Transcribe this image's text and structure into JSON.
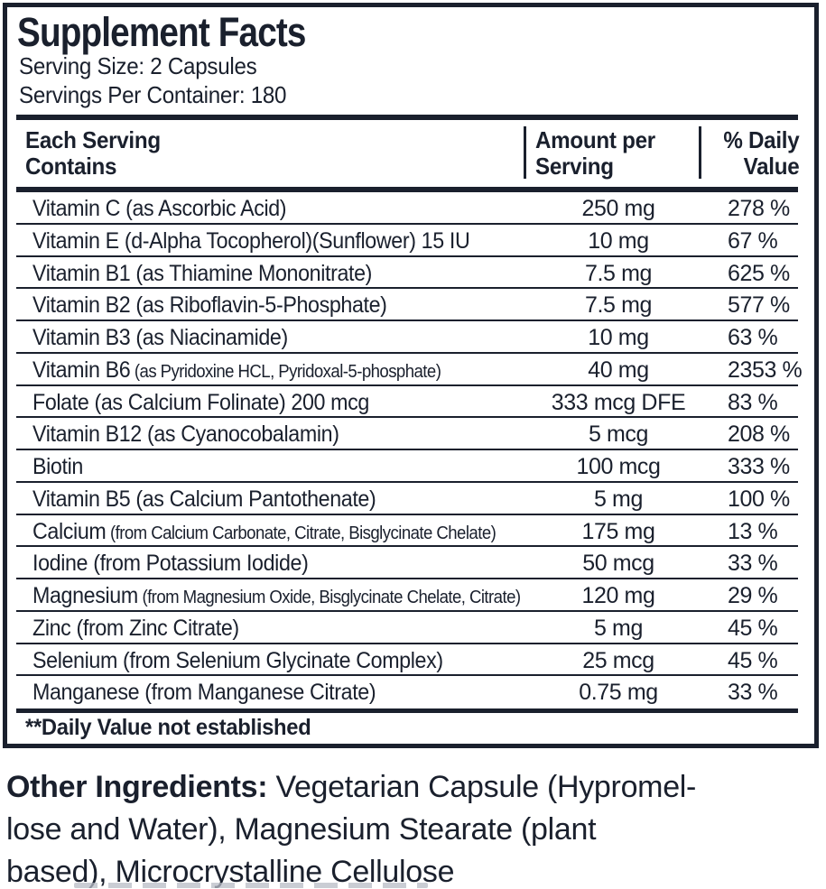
{
  "panel": {
    "title": "Supplement Facts",
    "serving_size": "Serving Size: 2 Capsules",
    "servings_per_container": "Servings Per Container: 180",
    "columns": {
      "each_serving_line1": "Each Serving",
      "each_serving_line2": "Contains",
      "amount_line1": "Amount per",
      "amount_line2": "Serving",
      "dv_line1": "% Daily",
      "dv_line2": "Value"
    },
    "rows": [
      {
        "name": "Vitamin C",
        "detail": "(as Ascorbic Acid)",
        "small_detail": false,
        "amount": "250 mg",
        "dv": "278 %"
      },
      {
        "name": "Vitamin E",
        "detail": "(d-Alpha Tocopherol)(Sunflower) 15 IU",
        "small_detail": false,
        "amount": "10 mg",
        "dv": "67 %"
      },
      {
        "name": "Vitamin B1",
        "detail": "(as Thiamine Mononitrate)",
        "small_detail": false,
        "amount": "7.5 mg",
        "dv": "625 %"
      },
      {
        "name": "Vitamin B2",
        "detail": "(as Riboflavin-5-Phosphate)",
        "small_detail": false,
        "amount": "7.5 mg",
        "dv": "577 %"
      },
      {
        "name": "Vitamin B3",
        "detail": "(as Niacinamide)",
        "small_detail": false,
        "amount": "10 mg",
        "dv": "63 %"
      },
      {
        "name": "Vitamin B6",
        "detail": "(as Pyridoxine HCL, Pyridoxal-5-phosphate)",
        "small_detail": true,
        "amount": "40 mg",
        "dv": "2353 %"
      },
      {
        "name": "Folate",
        "detail": "(as Calcium Folinate) 200 mcg",
        "small_detail": false,
        "amount": "333 mcg DFE",
        "dv": "83 %"
      },
      {
        "name": "Vitamin B12",
        "detail": "(as Cyanocobalamin)",
        "small_detail": false,
        "amount": "5 mcg",
        "dv": "208 %"
      },
      {
        "name": "Biotin",
        "detail": "",
        "small_detail": false,
        "amount": "100 mcg",
        "dv": "333 %"
      },
      {
        "name": "Vitamin B5",
        "detail": "(as Calcium Pantothenate)",
        "small_detail": false,
        "amount": "5 mg",
        "dv": "100 %"
      },
      {
        "name": "Calcium",
        "detail": "(from Calcium Carbonate, Citrate, Bisglycinate Chelate)",
        "small_detail": true,
        "amount": "175 mg",
        "dv": "13 %"
      },
      {
        "name": "Iodine",
        "detail": "(from Potassium Iodide)",
        "small_detail": false,
        "amount": "50 mcg",
        "dv": "33 %"
      },
      {
        "name": "Magnesium",
        "detail": "(from Magnesium Oxide, Bisglycinate Chelate, Citrate)",
        "small_detail": true,
        "amount": "120 mg",
        "dv": "29 %"
      },
      {
        "name": "Zinc",
        "detail": "(from Zinc Citrate)",
        "small_detail": false,
        "amount": "5 mg",
        "dv": "45 %"
      },
      {
        "name": "Selenium",
        "detail": "(from Selenium Glycinate Complex)",
        "small_detail": false,
        "amount": "25 mcg",
        "dv": "45 %"
      },
      {
        "name": "Manganese",
        "detail": "(from Manganese Citrate)",
        "small_detail": false,
        "amount": "0.75 mg",
        "dv": "33 %"
      }
    ],
    "footnote": "**Daily Value not established"
  },
  "other_ingredients": {
    "label": "Other Ingredients:",
    "line1_rest": " Vegetarian Capsule (Hypromel-",
    "line2": "lose and Water), Magnesium Stearate (plant",
    "line3": "based), Microcrystalline Cellulose"
  },
  "colors": {
    "ink": "#1a202d",
    "cutoff_gray": "#b8bcc6",
    "background": "#ffffff"
  }
}
